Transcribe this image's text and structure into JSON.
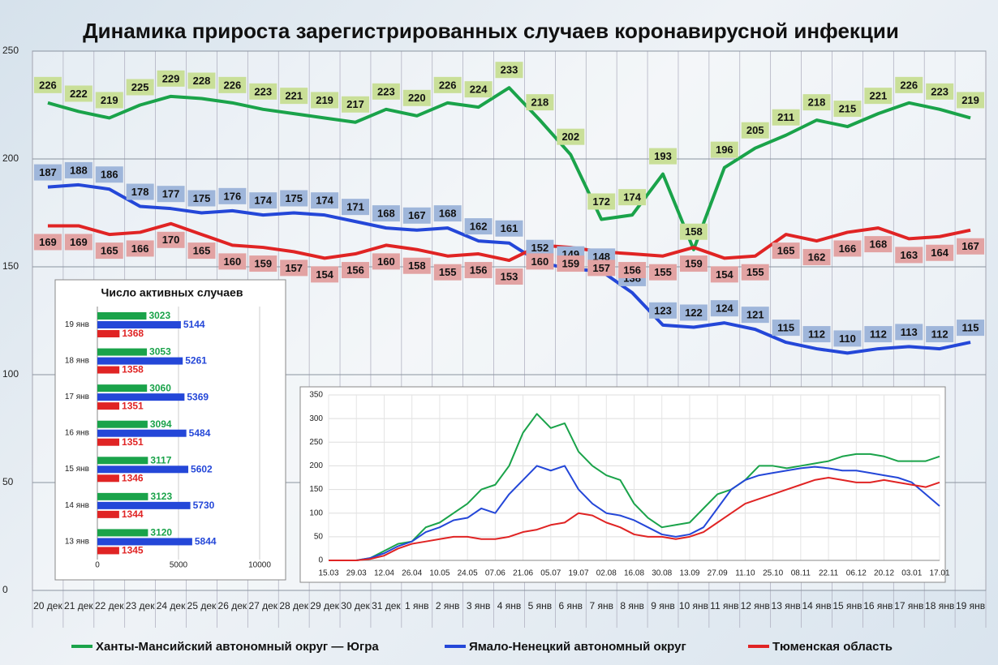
{
  "chart_data": [
    {
      "type": "line",
      "title": "Динамика прироста зарегистрированных случаев коронавирусной инфекции",
      "categories": [
        "20 дек",
        "21 дек",
        "22 дек",
        "23 дек",
        "24 дек",
        "25 дек",
        "26 дек",
        "27 дек",
        "28 дек",
        "29 дек",
        "30 дек",
        "31 дек",
        "1 янв",
        "2 янв",
        "3 янв",
        "4 янв",
        "5 янв",
        "6 янв",
        "7 янв",
        "8 янв",
        "9 янв",
        "10 янв",
        "11 янв",
        "12 янв",
        "13 янв",
        "14 янв",
        "15 янв",
        "16 янв",
        "17 янв",
        "18 янв",
        "19 янв"
      ],
      "series": [
        {
          "name": "Ханты-Мансийский автономный округ — Югра",
          "color": "#1aa34a",
          "label_color": "#c9df98",
          "values": [
            226,
            222,
            219,
            225,
            229,
            228,
            226,
            223,
            221,
            219,
            217,
            223,
            220,
            226,
            224,
            233,
            218,
            202,
            172,
            174,
            193,
            158,
            196,
            205,
            211,
            218,
            215,
            221,
            226,
            223,
            219
          ]
        },
        {
          "name": "Ямало-Ненецкий автономный округ",
          "color": "#2447d8",
          "label_color": "#9fb6da",
          "values": [
            187,
            188,
            186,
            178,
            177,
            175,
            176,
            174,
            175,
            174,
            171,
            168,
            167,
            168,
            162,
            161,
            152,
            149,
            148,
            138,
            123,
            122,
            124,
            121,
            115,
            112,
            110,
            112,
            113,
            112,
            115
          ]
        },
        {
          "name": "Тюменская область",
          "color": "#e02424",
          "label_color": "#e2a3a3",
          "values": [
            169,
            169,
            165,
            166,
            170,
            165,
            160,
            159,
            157,
            154,
            156,
            160,
            158,
            155,
            156,
            153,
            160,
            159,
            157,
            156,
            155,
            159,
            154,
            155,
            165,
            162,
            166,
            168,
            163,
            164,
            167
          ]
        }
      ],
      "ylim": [
        0,
        250
      ],
      "yticks": [
        0,
        50,
        100,
        150,
        200,
        250
      ],
      "grid": true,
      "legend": "bottom"
    },
    {
      "type": "bar",
      "orientation": "horizontal",
      "title": "Число активных случаев",
      "categories": [
        "19 янв",
        "18 янв",
        "17 янв",
        "16 янв",
        "15 янв",
        "14 янв",
        "13 янв"
      ],
      "series": [
        {
          "color": "#1aa34a",
          "values": [
            3023,
            3053,
            3060,
            3094,
            3117,
            3123,
            3120
          ]
        },
        {
          "color": "#2447d8",
          "values": [
            5144,
            5261,
            5369,
            5484,
            5602,
            5730,
            5844
          ]
        },
        {
          "color": "#e02424",
          "values": [
            1368,
            1358,
            1351,
            1351,
            1346,
            1344,
            1345
          ]
        }
      ],
      "xlim": [
        0,
        10000
      ],
      "xticks": [
        0,
        5000,
        10000
      ],
      "grid": true
    },
    {
      "type": "line",
      "categories": [
        "15.03",
        null,
        "29.03",
        null,
        "12.04",
        null,
        "26.04",
        null,
        "10.05",
        null,
        "24.05",
        null,
        "07.06",
        null,
        "21.06",
        null,
        "05.07",
        null,
        "19.07",
        null,
        "02.08",
        null,
        "16.08",
        null,
        "30.08",
        null,
        "13.09",
        null,
        "27.09",
        null,
        "11.10",
        null,
        "25.10",
        null,
        "08.11",
        null,
        "22.11",
        null,
        "06.12",
        null,
        "20.12",
        null,
        "03.01",
        null,
        "17.01"
      ],
      "series": [
        {
          "color": "#1aa34a",
          "values": [
            0,
            0,
            0,
            5,
            20,
            35,
            40,
            70,
            80,
            100,
            120,
            150,
            160,
            200,
            270,
            310,
            280,
            290,
            230,
            200,
            180,
            170,
            120,
            90,
            70,
            75,
            80,
            110,
            140,
            150,
            170,
            200,
            200,
            195,
            200,
            205,
            210,
            220,
            225,
            225,
            220,
            210,
            210,
            210,
            220
          ]
        },
        {
          "color": "#2447d8",
          "values": [
            0,
            0,
            0,
            5,
            15,
            30,
            40,
            60,
            70,
            85,
            90,
            110,
            100,
            140,
            170,
            200,
            190,
            200,
            150,
            120,
            100,
            95,
            85,
            70,
            55,
            50,
            55,
            70,
            110,
            150,
            170,
            180,
            185,
            190,
            195,
            198,
            195,
            190,
            190,
            185,
            180,
            175,
            165,
            140,
            115
          ]
        },
        {
          "color": "#e02424",
          "values": [
            0,
            0,
            0,
            3,
            10,
            25,
            35,
            40,
            45,
            50,
            50,
            45,
            45,
            50,
            60,
            65,
            75,
            80,
            100,
            95,
            80,
            70,
            55,
            50,
            50,
            45,
            50,
            60,
            80,
            100,
            120,
            130,
            140,
            150,
            160,
            170,
            175,
            170,
            165,
            165,
            170,
            165,
            160,
            155,
            165
          ]
        }
      ],
      "ylim": [
        0,
        350
      ],
      "yticks": [
        0,
        50,
        100,
        150,
        200,
        250,
        300,
        350
      ],
      "grid": true
    }
  ]
}
